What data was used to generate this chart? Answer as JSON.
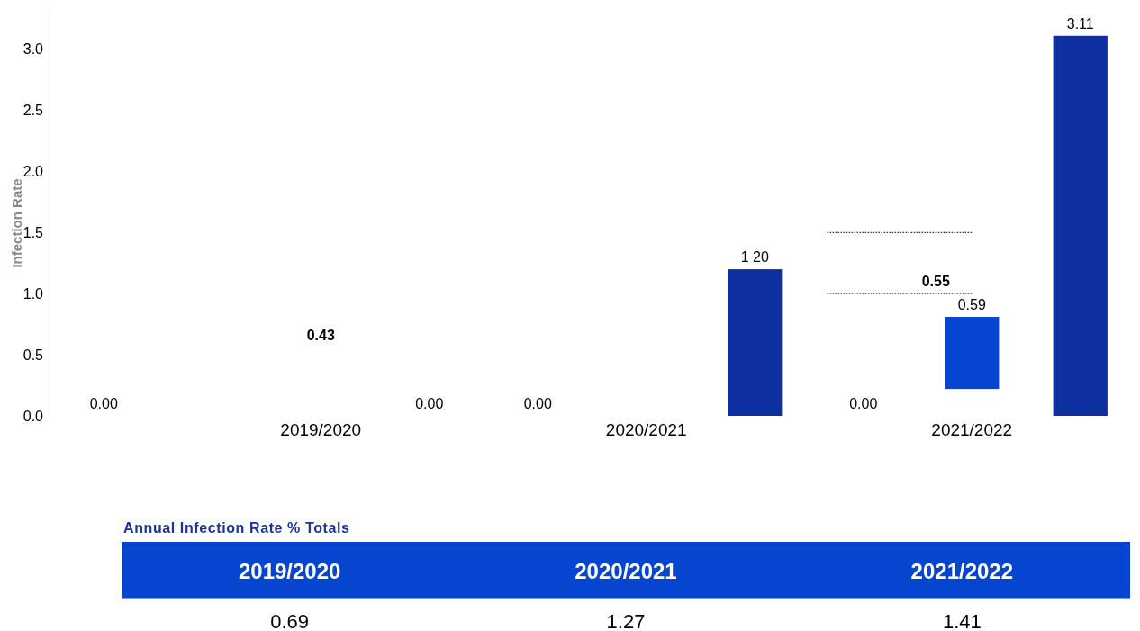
{
  "chart_data": [
    {
      "type": "bar",
      "ylabel": "Infection Rate",
      "categories": [
        null,
        null,
        "2019/2020",
        null,
        null,
        "2020/2021",
        null,
        null,
        "2021/2022",
        null
      ],
      "values": [
        0,
        null,
        null,
        0,
        0,
        null,
        1.2,
        0,
        0.59,
        3.11
      ],
      "base": [
        null,
        null,
        null,
        null,
        null,
        null,
        null,
        null,
        0.22,
        null
      ],
      "colors": [
        "#ffffff",
        null,
        null,
        "#ffffff",
        "#ffffff",
        null,
        "#0d2fa0",
        "#ffffff",
        "#0645d0",
        "#0d2fa0"
      ],
      "value_labels": [
        "0.00",
        null,
        null,
        "0.00",
        "0.00",
        null,
        "1 20",
        "0.00",
        "0.59",
        "3.11"
      ],
      "annotations": [
        "0.43",
        "0.55"
      ],
      "ylim": [
        0,
        3.3
      ],
      "yticks": [
        {
          "value": 0,
          "label": "0.0"
        },
        {
          "value": 0.5,
          "label": "0.5"
        },
        {
          "value": 1,
          "label": "1.0"
        },
        {
          "value": 1.5,
          "label": "1.5"
        },
        {
          "value": 2,
          "label": "2.0"
        },
        {
          "value": 2.5,
          "label": "2.5"
        },
        {
          "value": 3,
          "label": "3.0"
        }
      ],
      "ref_lines": [
        {
          "axis": "y",
          "value": 1.5,
          "line_style": "dotted",
          "color": "#333333"
        },
        {
          "axis": "y",
          "value": 1.0,
          "line_style": "dotted",
          "color": "#333333"
        }
      ],
      "grid": false
    },
    {
      "type": "other",
      "title": "Annual Infection Rate % Totals",
      "categories": [
        "2019/2020",
        "2020/2021",
        "2021/2022"
      ],
      "values": [
        0.69,
        1.27,
        1.41
      ],
      "color": "#0645d0",
      "data_labels": true
    }
  ]
}
